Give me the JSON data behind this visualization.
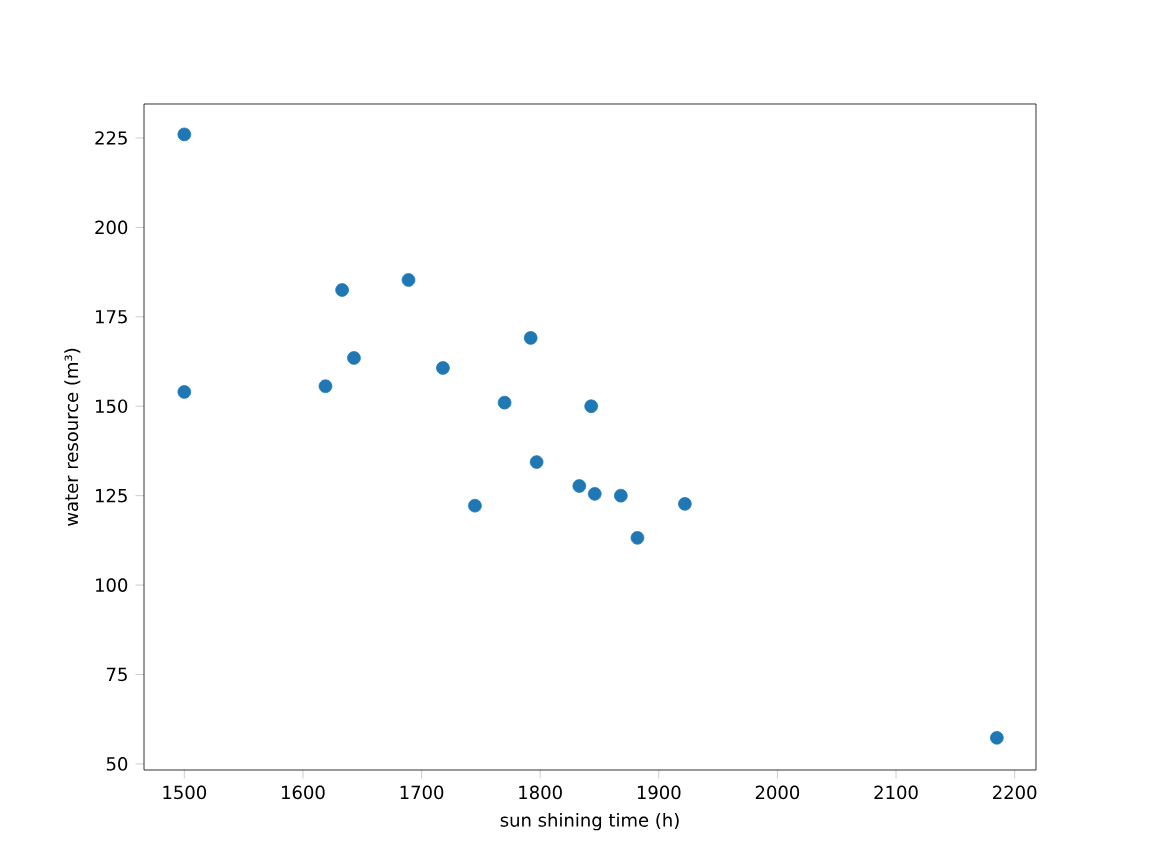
{
  "chart_data": {
    "type": "scatter",
    "xlabel": "sun shining time (h)",
    "ylabel": "water resource (m³)",
    "x": [
      1500,
      1500,
      1633,
      1643,
      1619,
      1689,
      1718,
      1770,
      1745,
      1792,
      1797,
      1843,
      1833,
      1846,
      1868,
      1882,
      1922,
      2185
    ],
    "values": [
      226,
      154,
      182.5,
      163.5,
      155.6,
      185.3,
      160.7,
      151,
      122.2,
      169.1,
      134.4,
      150,
      127.7,
      125.5,
      125,
      113.2,
      122.7,
      57.3
    ],
    "color": "#1f77b4",
    "xlim": [
      1466,
      2218
    ],
    "ylim": [
      48.3,
      234.5
    ],
    "xticks": [
      1500,
      1600,
      1700,
      1800,
      1900,
      2000,
      2100,
      2200
    ],
    "yticks": [
      50,
      75,
      100,
      125,
      150,
      175,
      200,
      225
    ]
  }
}
